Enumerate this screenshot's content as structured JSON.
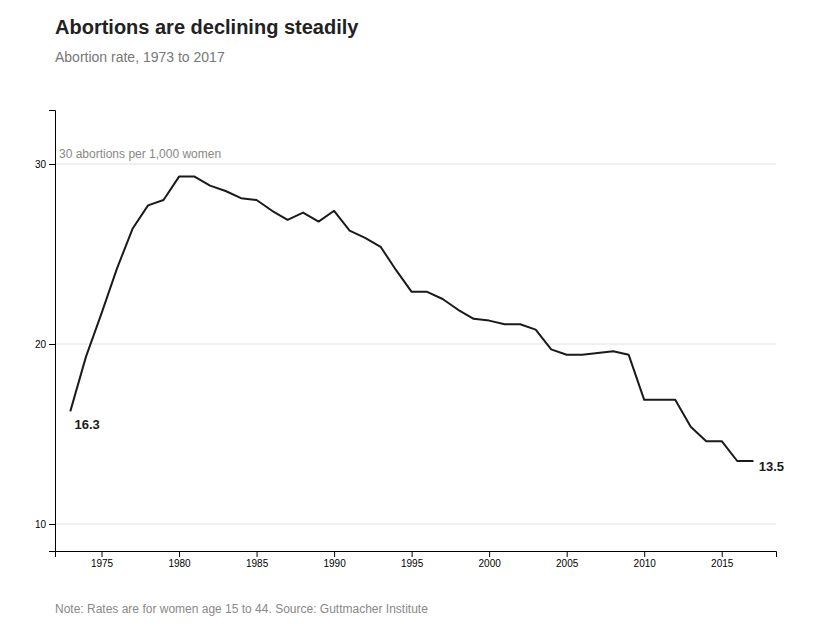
{
  "chart_data": {
    "type": "line",
    "title": "Abortions are declining steadily",
    "subtitle": "Abortion rate, 1973 to 2017",
    "ylabel": "30 abortions per 1,000 women",
    "note": "Note: Rates are for women age 15 to 44. Source: Guttmacher Institute",
    "color": "#1a1a1a",
    "x": [
      1973,
      1974,
      1975,
      1976,
      1977,
      1978,
      1979,
      1980,
      1981,
      1982,
      1983,
      1984,
      1985,
      1986,
      1987,
      1988,
      1989,
      1990,
      1991,
      1992,
      1993,
      1994,
      1995,
      1996,
      1997,
      1998,
      1999,
      2000,
      2001,
      2002,
      2003,
      2004,
      2005,
      2006,
      2007,
      2008,
      2009,
      2010,
      2011,
      2012,
      2013,
      2014,
      2015,
      2016,
      2017
    ],
    "values": [
      16.3,
      19.3,
      21.7,
      24.2,
      26.4,
      27.7,
      28.0,
      29.3,
      29.3,
      28.8,
      28.5,
      28.1,
      28.0,
      27.4,
      26.9,
      27.3,
      26.8,
      27.4,
      26.3,
      25.9,
      25.4,
      24.1,
      22.9,
      22.9,
      22.5,
      21.9,
      21.4,
      21.3,
      21.1,
      21.1,
      20.8,
      19.7,
      19.4,
      19.4,
      19.5,
      19.6,
      19.4,
      16.9,
      16.9,
      16.9,
      15.4,
      14.6,
      14.6,
      13.5,
      13.5
    ],
    "annotations": [
      {
        "text": "16.3",
        "x": 1973,
        "y": 16.3
      },
      {
        "text": "13.5",
        "x": 2017,
        "y": 13.5
      }
    ],
    "xlim": [
      1972,
      2018.5
    ],
    "ylim": [
      8.5,
      33.0
    ],
    "xticks": [
      1975,
      1980,
      1985,
      1990,
      1995,
      2000,
      2005,
      2010,
      2015
    ],
    "yticks": [
      10,
      20,
      30
    ],
    "grid": true
  }
}
